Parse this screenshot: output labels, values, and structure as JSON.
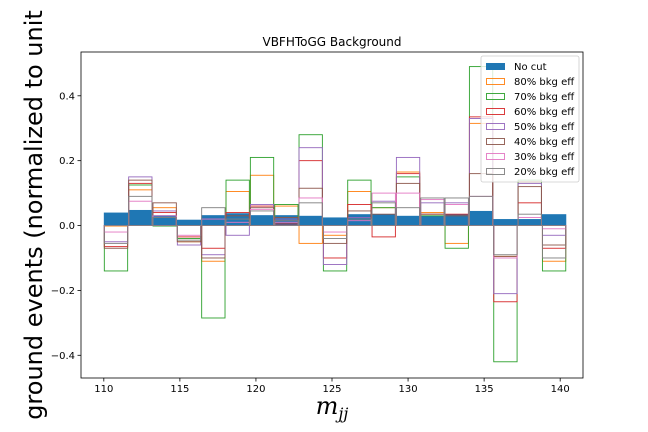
{
  "chart_data": {
    "type": "bar",
    "title": "VBFHToGG Background",
    "xlabel": "m",
    "xlabel_sub": "jj",
    "ylabel": "ground events (normalized to unit",
    "xlim": [
      108.5,
      141.5
    ],
    "ylim": [
      -0.47,
      0.535
    ],
    "xticks": [
      110,
      115,
      120,
      125,
      130,
      135,
      140
    ],
    "yticks": [
      -0.4,
      -0.2,
      0.0,
      0.2,
      0.4
    ],
    "xtick_labels": [
      "110",
      "115",
      "120",
      "125",
      "130",
      "135",
      "140"
    ],
    "ytick_labels": [
      "−0.4",
      "−0.2",
      "0.0",
      "0.2",
      "0.4"
    ],
    "bin_edges": [
      110,
      111.6,
      113.2,
      114.8,
      116.4,
      118.0,
      119.6,
      121.2,
      122.8,
      124.4,
      126.0,
      127.6,
      129.2,
      130.8,
      132.4,
      134.0,
      135.6,
      137.2,
      138.8,
      140.4
    ],
    "legend_position": "upper right",
    "series": [
      {
        "name": "No cut",
        "color": "#1f77b4",
        "style": "filled",
        "values": [
          0.04,
          0.048,
          0.032,
          0.018,
          0.032,
          0.038,
          0.032,
          0.032,
          0.03,
          0.025,
          0.035,
          0.035,
          0.03,
          0.03,
          0.035,
          0.045,
          0.02,
          0.02,
          0.035
        ]
      },
      {
        "name": "80% bkg eff",
        "color": "#ff7f0e",
        "style": "step",
        "values": [
          0.0,
          0.11,
          0.055,
          -0.05,
          -0.11,
          0.105,
          0.155,
          0.06,
          -0.055,
          -0.03,
          0.105,
          0.055,
          0.165,
          0.04,
          -0.055,
          0.315,
          -0.095,
          0.135,
          -0.11
        ]
      },
      {
        "name": "70% bkg eff",
        "color": "#2ca02c",
        "style": "step",
        "values": [
          -0.14,
          0.125,
          0.0,
          -0.04,
          -0.285,
          0.14,
          0.21,
          0.065,
          0.28,
          -0.14,
          0.14,
          0.055,
          0.15,
          0.03,
          -0.07,
          0.49,
          -0.42,
          0.14,
          -0.14
        ]
      },
      {
        "name": "60% bkg eff",
        "color": "#d62728",
        "style": "step",
        "values": [
          -0.065,
          0.13,
          0.04,
          -0.035,
          -0.07,
          0.04,
          0.06,
          0.005,
          0.2,
          -0.1,
          0.065,
          -0.035,
          0.16,
          0.035,
          0.035,
          0.335,
          -0.235,
          0.07,
          -0.07
        ]
      },
      {
        "name": "50% bkg eff",
        "color": "#9467bd",
        "style": "step",
        "values": [
          -0.05,
          0.15,
          0.045,
          -0.06,
          -0.09,
          -0.03,
          0.065,
          0.02,
          0.24,
          -0.12,
          0.025,
          0.075,
          0.21,
          0.07,
          0.07,
          0.33,
          -0.21,
          0.13,
          -0.03
        ]
      },
      {
        "name": "40% bkg eff",
        "color": "#8c564b",
        "style": "step",
        "values": [
          -0.07,
          0.14,
          0.07,
          -0.05,
          -0.1,
          0.03,
          0.055,
          0.025,
          0.115,
          -0.055,
          0.045,
          0.035,
          0.13,
          0.035,
          0.03,
          0.16,
          -0.095,
          0.12,
          -0.06
        ]
      },
      {
        "name": "30% bkg eff",
        "color": "#e377c2",
        "style": "step",
        "values": [
          -0.02,
          0.075,
          0.03,
          -0.03,
          0.02,
          0.01,
          0.05,
          0.01,
          0.085,
          -0.02,
          0.015,
          0.1,
          0.1,
          0.08,
          0.065,
          0.09,
          -0.1,
          0.025,
          -0.01
        ]
      },
      {
        "name": "20% bkg eff",
        "color": "#7f7f7f",
        "style": "step",
        "values": [
          -0.055,
          0.09,
          0.025,
          -0.045,
          0.055,
          0.02,
          0.045,
          0.015,
          0.07,
          -0.04,
          0.02,
          0.07,
          0.055,
          0.085,
          0.085,
          0.09,
          -0.09,
          0.035,
          -0.1
        ]
      }
    ]
  }
}
